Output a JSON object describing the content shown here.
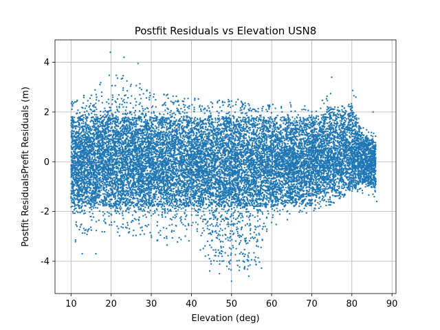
{
  "chart_data": {
    "type": "scatter",
    "title": "Postfit Residuals vs Elevation USN8",
    "xlabel": "Elevation (deg)",
    "ylabel": "Postfit ResidualsPrefit Residuals (m)",
    "xlim": [
      6,
      91
    ],
    "ylim": [
      -5.3,
      4.9
    ],
    "xticks": [
      10,
      20,
      30,
      40,
      50,
      60,
      70,
      80,
      90
    ],
    "yticks": [
      -4,
      -2,
      0,
      2,
      4
    ],
    "grid": true,
    "point_color": "#1f77b4",
    "series": [
      {
        "envelope": [
          {
            "x": 10,
            "lo": -3.3,
            "hi": 2.4
          },
          {
            "x": 15,
            "lo": -3.0,
            "hi": 3.0
          },
          {
            "x": 20,
            "lo": -2.9,
            "hi": 3.6
          },
          {
            "x": 25,
            "lo": -3.1,
            "hi": 3.4
          },
          {
            "x": 30,
            "lo": -3.2,
            "hi": 2.8
          },
          {
            "x": 35,
            "lo": -3.4,
            "hi": 2.7
          },
          {
            "x": 40,
            "lo": -3.2,
            "hi": 2.6
          },
          {
            "x": 45,
            "lo": -4.1,
            "hi": 2.4
          },
          {
            "x": 50,
            "lo": -4.7,
            "hi": 2.6
          },
          {
            "x": 55,
            "lo": -4.0,
            "hi": 2.4
          },
          {
            "x": 60,
            "lo": -2.6,
            "hi": 2.3
          },
          {
            "x": 65,
            "lo": -2.5,
            "hi": 2.4
          },
          {
            "x": 70,
            "lo": -2.0,
            "hi": 2.3
          },
          {
            "x": 75,
            "lo": -1.8,
            "hi": 3.0
          },
          {
            "x": 80,
            "lo": -1.2,
            "hi": 3.0
          },
          {
            "x": 83,
            "lo": -1.3,
            "hi": 1.4
          },
          {
            "x": 86,
            "lo": -1.6,
            "hi": 1.1
          }
        ],
        "outliers": [
          {
            "x": 19.8,
            "y": 4.4
          },
          {
            "x": 23.2,
            "y": 4.2
          },
          {
            "x": 26.7,
            "y": 3.95
          },
          {
            "x": 75.0,
            "y": 3.4
          },
          {
            "x": 50.0,
            "y": -4.8
          },
          {
            "x": 47.0,
            "y": -4.5
          },
          {
            "x": 54.3,
            "y": -4.6
          },
          {
            "x": 12.8,
            "y": -3.7
          },
          {
            "x": 16.2,
            "y": -3.7
          },
          {
            "x": 81.0,
            "y": 2.6
          },
          {
            "x": 85.3,
            "y": 2.0
          },
          {
            "x": 86.2,
            "y": -1.6
          }
        ]
      }
    ]
  }
}
